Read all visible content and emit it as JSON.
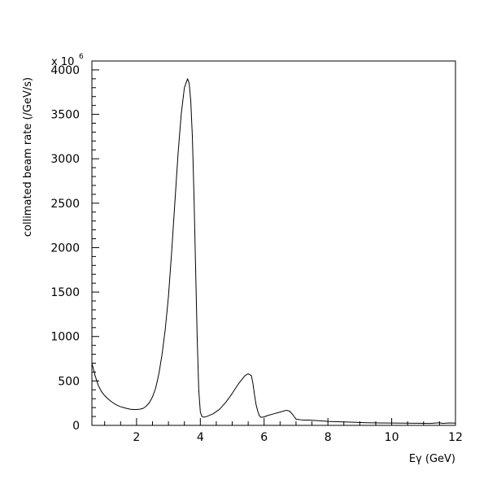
{
  "chart_data": {
    "type": "line",
    "title": "",
    "xlabel": "Eγ (GeV)",
    "ylabel": "collimated beam rate (/GeV/s)",
    "y_multiplier_label": "x 10",
    "y_multiplier_exponent": "6",
    "xlim": [
      0.6,
      12
    ],
    "ylim": [
      0,
      4100
    ],
    "x_ticks": [
      2,
      4,
      6,
      8,
      10,
      12
    ],
    "x_tick_labels": [
      "2",
      "4",
      "6",
      "8",
      "10",
      "12"
    ],
    "y_ticks": [
      0,
      500,
      1000,
      1500,
      2000,
      2500,
      3000,
      3500,
      4000
    ],
    "y_tick_labels": [
      "0",
      "500",
      "1000",
      "1500",
      "2000",
      "2500",
      "3000",
      "3500",
      "4000"
    ],
    "grid": false,
    "series": [
      {
        "x": [
          0.6,
          0.7,
          0.8,
          0.9,
          1.0,
          1.1,
          1.2,
          1.3,
          1.4,
          1.5,
          1.6,
          1.7,
          1.8,
          1.9,
          2.0,
          2.1,
          2.2,
          2.3,
          2.4,
          2.5,
          2.6,
          2.7,
          2.8,
          2.9,
          3.0,
          3.1,
          3.2,
          3.3,
          3.4,
          3.5,
          3.6,
          3.65,
          3.7,
          3.75,
          3.8,
          3.85,
          3.9,
          3.95,
          4.0,
          4.05,
          4.1,
          4.2,
          4.4,
          4.6,
          4.8,
          5.0,
          5.2,
          5.4,
          5.5,
          5.6,
          5.65,
          5.7,
          5.75,
          5.8,
          5.85,
          5.9,
          6.0,
          6.1,
          6.3,
          6.5,
          6.7,
          6.8,
          6.9,
          7.0,
          7.2,
          7.4,
          7.6,
          7.8,
          8.0,
          8.4,
          8.8,
          9.2,
          9.6,
          10.0,
          10.4,
          10.8,
          11.2,
          11.5,
          11.6,
          11.8,
          12.0
        ],
        "y": [
          700,
          560,
          450,
          380,
          335,
          300,
          270,
          245,
          225,
          210,
          200,
          190,
          182,
          178,
          178,
          182,
          190,
          215,
          255,
          320,
          420,
          580,
          800,
          1080,
          1450,
          1950,
          2500,
          3050,
          3500,
          3800,
          3900,
          3850,
          3650,
          3250,
          2600,
          1800,
          1000,
          400,
          150,
          100,
          92,
          100,
          130,
          180,
          260,
          360,
          470,
          560,
          580,
          560,
          470,
          340,
          230,
          160,
          110,
          90,
          95,
          110,
          130,
          150,
          170,
          160,
          120,
          70,
          60,
          60,
          55,
          50,
          45,
          40,
          35,
          30,
          28,
          26,
          25,
          24,
          22,
          30,
          22,
          28,
          25
        ]
      }
    ]
  }
}
